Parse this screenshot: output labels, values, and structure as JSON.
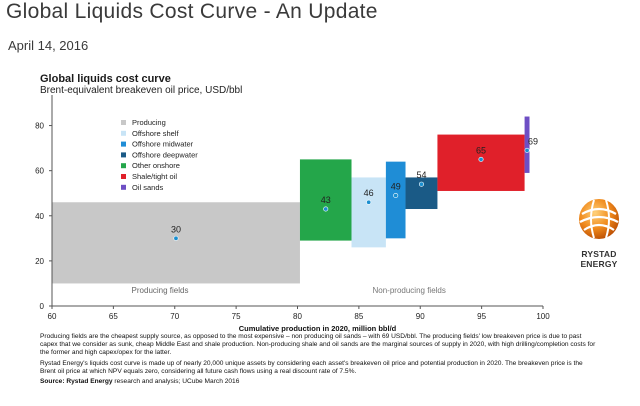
{
  "page": {
    "title": "Global Liquids Cost Curve - An Update",
    "date": "April 14, 2016"
  },
  "chart_data": {
    "type": "bar",
    "title": "Global liquids cost curve",
    "subtitle": "Brent-equivalent breakeven oil price, USD/bbl",
    "xlabel": "Cumulative production in 2020, million bbl/d",
    "ylabel": "",
    "xlim": [
      60,
      100
    ],
    "ylim": [
      0,
      90
    ],
    "xticks": [
      60,
      65,
      70,
      75,
      80,
      85,
      90,
      95,
      100
    ],
    "yticks": [
      0,
      20,
      40,
      60,
      80
    ],
    "grid": false,
    "legend_position": "top-left",
    "legend": [
      {
        "name": "Producing",
        "color": "#c8c8c8"
      },
      {
        "name": "Offshore shelf",
        "color": "#c8e4f6"
      },
      {
        "name": "Offshore midwater",
        "color": "#1f8dd6"
      },
      {
        "name": "Offshore deepwater",
        "color": "#1a5a86"
      },
      {
        "name": "Other onshore",
        "color": "#24a64a"
      },
      {
        "name": "Shale/tight oil",
        "color": "#e0202a"
      },
      {
        "name": "Oil sands",
        "color": "#6e4fc4"
      }
    ],
    "segments": [
      {
        "category": "Producing",
        "x0": 60.0,
        "x1": 80.2,
        "y0": 10,
        "y1": 46,
        "breakeven": 30
      },
      {
        "category": "Other onshore",
        "x0": 80.2,
        "x1": 84.4,
        "y0": 29,
        "y1": 65,
        "breakeven": 43
      },
      {
        "category": "Offshore shelf",
        "x0": 84.4,
        "x1": 87.2,
        "y0": 26,
        "y1": 57,
        "breakeven": 46
      },
      {
        "category": "Offshore midwater",
        "x0": 87.2,
        "x1": 88.8,
        "y0": 30,
        "y1": 64,
        "breakeven": 49
      },
      {
        "category": "Offshore deepwater",
        "x0": 88.8,
        "x1": 91.4,
        "y0": 43,
        "y1": 57,
        "breakeven": 54
      },
      {
        "category": "Shale/tight oil",
        "x0": 91.4,
        "x1": 98.5,
        "y0": 51,
        "y1": 76,
        "breakeven": 65
      },
      {
        "category": "Oil sands",
        "x0": 98.5,
        "x1": 98.9,
        "y0": 59,
        "y1": 84,
        "breakeven": 69
      }
    ],
    "breakeven_labels": [
      "30",
      "43",
      "46",
      "49",
      "54",
      "65",
      "69"
    ],
    "annotations": {
      "producing": "Producing fields",
      "non_producing": "Non-producing fields"
    },
    "brand": "RYSTAD ENERGY"
  },
  "notes": {
    "p1": "Producing fields are the cheapest supply source, as opposed to the most expensive – non producing oil sands – with 69 USD/bbl. The producing fields' low breakeven price is due to past capex that we consider as sunk, cheap Middle East and shale production. Non-producing shale and oil sands are the marginal sources of supply in 2020, with high drilling/completion costs for the former and high capex/opex for the latter.",
    "p2": "Rystad Energy's liquids cost curve is made up of nearly 20,000 unique assets by considering each asset's breakeven oil price and potential production in 2020. The breakeven price is the Brent oil price at which NPV equals zero, considering all future cash flows using a real discount rate of 7.5%.",
    "p3_bold": "Source: Rystad Energy",
    "p3": " research and analysis; UCube March 2016"
  }
}
